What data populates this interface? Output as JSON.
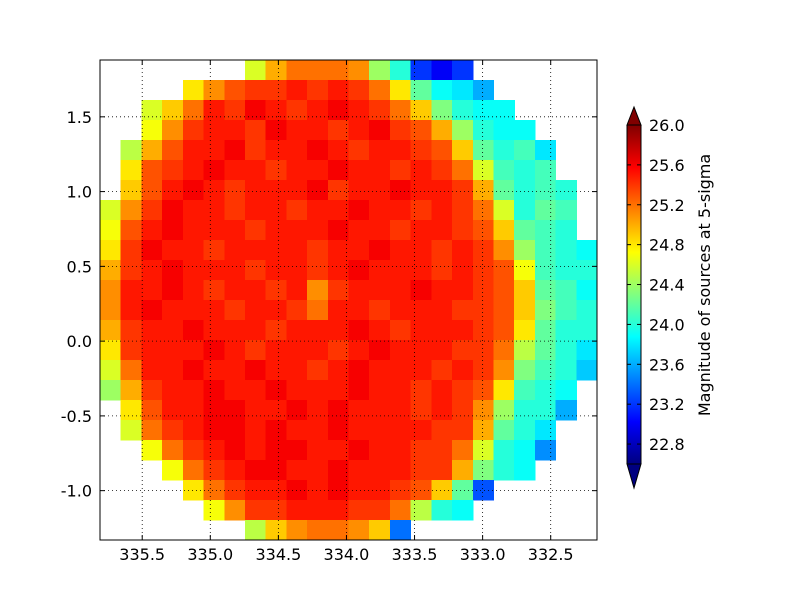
{
  "chart_data": {
    "type": "heatmap",
    "colorbar_label": "Magnitude of sources at 5-sigma",
    "xlim": [
      335.81,
      332.16
    ],
    "ylim": [
      -1.33,
      1.88
    ],
    "xticks": [
      335.5,
      {
        "value": 335,
        "label": "335.0"
      },
      334.5,
      {
        "value": 334,
        "label": "334.0"
      },
      333.5,
      {
        "value": 333,
        "label": "333.0"
      },
      332.5
    ],
    "yticks": [
      {
        "value": -1,
        "label": "-1.0"
      },
      -0.5,
      {
        "value": 0,
        "label": "0.0"
      },
      0.5,
      {
        "value": 1,
        "label": "1.0"
      },
      1.5
    ],
    "grid": true,
    "colormap": "jet",
    "clim": [
      22.6,
      26.0
    ],
    "colorbar_extend": "both",
    "cticks": [
      22.8,
      23.2,
      23.6,
      {
        "value": 24,
        "label": "24.0"
      },
      24.4,
      24.8,
      25.2,
      25.6,
      {
        "value": 26,
        "label": "26.0"
      }
    ],
    "z": [
      [
        null,
        null,
        null,
        null,
        null,
        null,
        null,
        24.6,
        25.0,
        25.2,
        25.2,
        25.2,
        25.1,
        24.4,
        24.0,
        23.2,
        23.0,
        23.2,
        null,
        null,
        null,
        null,
        null,
        null
      ],
      [
        null,
        null,
        null,
        null,
        24.8,
        25.1,
        25.3,
        25.4,
        25.4,
        25.5,
        25.4,
        25.5,
        25.4,
        25.2,
        24.8,
        24.2,
        23.9,
        23.8,
        23.6,
        null,
        null,
        null,
        null,
        null
      ],
      [
        null,
        null,
        24.6,
        24.9,
        25.2,
        25.5,
        25.4,
        25.6,
        25.5,
        25.4,
        25.5,
        25.6,
        25.5,
        25.4,
        25.2,
        24.9,
        24.3,
        24.0,
        23.9,
        23.9,
        null,
        null,
        null,
        null
      ],
      [
        null,
        null,
        24.7,
        25.1,
        25.4,
        25.5,
        25.5,
        25.4,
        25.6,
        25.5,
        25.5,
        25.4,
        25.5,
        25.6,
        25.4,
        25.3,
        25.0,
        24.4,
        24.0,
        23.9,
        23.9,
        null,
        null,
        null
      ],
      [
        null,
        24.5,
        25.0,
        25.3,
        25.5,
        25.5,
        25.6,
        25.4,
        25.5,
        25.5,
        25.6,
        25.5,
        25.4,
        25.5,
        25.5,
        25.4,
        25.3,
        24.9,
        24.2,
        24.0,
        24.1,
        23.8,
        null,
        null
      ],
      [
        null,
        24.8,
        25.3,
        25.4,
        25.5,
        25.6,
        25.5,
        25.5,
        25.4,
        25.5,
        25.5,
        25.6,
        25.5,
        25.5,
        25.4,
        25.5,
        25.4,
        25.2,
        24.6,
        24.1,
        24.0,
        24.1,
        null,
        null
      ],
      [
        null,
        24.9,
        25.3,
        25.5,
        25.6,
        25.5,
        25.4,
        25.5,
        25.5,
        25.5,
        25.6,
        25.4,
        25.5,
        25.5,
        25.6,
        25.5,
        25.5,
        25.4,
        25.0,
        24.2,
        24.0,
        24.1,
        24.0,
        null
      ],
      [
        24.6,
        25.1,
        25.4,
        25.6,
        25.5,
        25.5,
        25.4,
        25.5,
        25.5,
        25.4,
        25.5,
        25.5,
        25.6,
        25.5,
        25.5,
        25.4,
        25.5,
        25.4,
        25.2,
        24.6,
        24.0,
        24.2,
        24.1,
        null
      ],
      [
        24.7,
        25.3,
        25.5,
        25.6,
        25.5,
        25.5,
        25.5,
        25.4,
        25.5,
        25.5,
        25.5,
        25.6,
        25.5,
        25.5,
        25.4,
        25.5,
        25.5,
        25.4,
        25.3,
        24.9,
        24.2,
        24.1,
        24.0,
        null
      ],
      [
        24.8,
        25.4,
        25.6,
        25.5,
        25.5,
        25.4,
        25.5,
        25.5,
        25.5,
        25.5,
        25.4,
        25.5,
        25.5,
        25.6,
        25.5,
        25.5,
        25.4,
        25.5,
        25.4,
        25.1,
        24.4,
        24.1,
        24.0,
        23.9
      ],
      [
        25.0,
        25.4,
        25.5,
        25.6,
        25.5,
        25.5,
        25.5,
        25.4,
        25.5,
        25.5,
        25.4,
        25.5,
        25.6,
        25.5,
        25.5,
        25.5,
        25.4,
        25.5,
        25.4,
        25.3,
        24.7,
        24.1,
        24.0,
        24.0
      ],
      [
        25.1,
        25.5,
        25.5,
        25.6,
        25.5,
        25.4,
        25.5,
        25.5,
        25.4,
        25.5,
        25.1,
        25.4,
        25.5,
        25.5,
        25.5,
        25.6,
        25.5,
        25.5,
        25.4,
        25.3,
        24.9,
        24.2,
        24.1,
        23.9
      ],
      [
        25.1,
        25.5,
        25.6,
        25.5,
        25.5,
        25.5,
        25.4,
        25.5,
        25.5,
        25.4,
        25.2,
        25.5,
        25.5,
        25.4,
        25.5,
        25.5,
        25.5,
        25.4,
        25.4,
        25.3,
        24.9,
        24.3,
        24.1,
        24.0
      ],
      [
        25.0,
        25.4,
        25.5,
        25.5,
        25.6,
        25.5,
        25.5,
        25.5,
        25.4,
        25.5,
        25.5,
        25.5,
        25.6,
        25.5,
        25.4,
        25.5,
        25.5,
        25.5,
        25.4,
        25.3,
        24.8,
        24.2,
        24.0,
        24.0
      ],
      [
        24.8,
        25.4,
        25.5,
        25.5,
        25.5,
        25.6,
        25.5,
        25.4,
        25.5,
        25.5,
        25.5,
        25.4,
        25.5,
        25.6,
        25.5,
        25.5,
        25.5,
        25.4,
        25.4,
        25.2,
        24.5,
        24.2,
        24.0,
        23.8
      ],
      [
        24.6,
        25.2,
        25.5,
        25.5,
        25.6,
        25.5,
        25.5,
        25.6,
        25.5,
        25.5,
        25.4,
        25.5,
        25.6,
        25.5,
        25.5,
        25.5,
        25.4,
        25.5,
        25.4,
        25.1,
        24.3,
        24.1,
        24.0,
        23.7
      ],
      [
        24.4,
        25.0,
        25.4,
        25.5,
        25.5,
        25.6,
        25.5,
        25.5,
        25.6,
        25.5,
        25.5,
        25.5,
        25.6,
        25.5,
        25.5,
        25.4,
        25.5,
        25.4,
        25.3,
        24.8,
        24.1,
        24.0,
        23.9,
        null
      ],
      [
        null,
        24.8,
        25.3,
        25.5,
        25.5,
        25.6,
        25.6,
        25.5,
        25.5,
        25.6,
        25.5,
        25.6,
        25.5,
        25.5,
        25.5,
        25.4,
        25.5,
        25.4,
        25.1,
        24.4,
        24.0,
        24.0,
        23.6,
        null
      ],
      [
        null,
        24.6,
        25.2,
        25.4,
        25.5,
        25.6,
        25.6,
        25.5,
        25.6,
        25.5,
        25.5,
        25.6,
        25.5,
        25.5,
        25.5,
        25.5,
        25.4,
        25.4,
        25.0,
        24.2,
        24.0,
        23.8,
        null,
        null
      ],
      [
        null,
        null,
        24.7,
        25.2,
        25.4,
        25.5,
        25.6,
        25.5,
        25.6,
        25.6,
        25.5,
        25.5,
        25.6,
        25.5,
        25.5,
        25.4,
        25.4,
        25.2,
        24.6,
        24.0,
        23.9,
        23.5,
        null,
        null
      ],
      [
        null,
        null,
        null,
        24.7,
        25.2,
        25.4,
        25.5,
        25.6,
        25.6,
        25.5,
        25.5,
        25.6,
        25.5,
        25.5,
        25.5,
        25.4,
        25.4,
        25.0,
        24.3,
        24.0,
        23.9,
        null,
        null,
        null
      ],
      [
        null,
        null,
        null,
        null,
        24.8,
        25.2,
        25.4,
        25.5,
        25.5,
        25.6,
        25.5,
        25.6,
        25.5,
        25.5,
        25.4,
        25.3,
        24.9,
        24.2,
        23.3,
        null,
        null,
        null,
        null,
        null
      ],
      [
        null,
        null,
        null,
        null,
        null,
        24.7,
        25.1,
        25.4,
        25.4,
        25.5,
        25.5,
        25.5,
        25.4,
        25.4,
        25.2,
        24.5,
        24.0,
        23.9,
        null,
        null,
        null,
        null,
        null,
        null
      ],
      [
        null,
        null,
        null,
        null,
        null,
        null,
        null,
        24.5,
        24.9,
        25.1,
        25.2,
        25.2,
        25.1,
        24.9,
        23.4,
        null,
        null,
        null,
        null,
        null,
        null,
        null,
        null,
        null
      ]
    ]
  }
}
